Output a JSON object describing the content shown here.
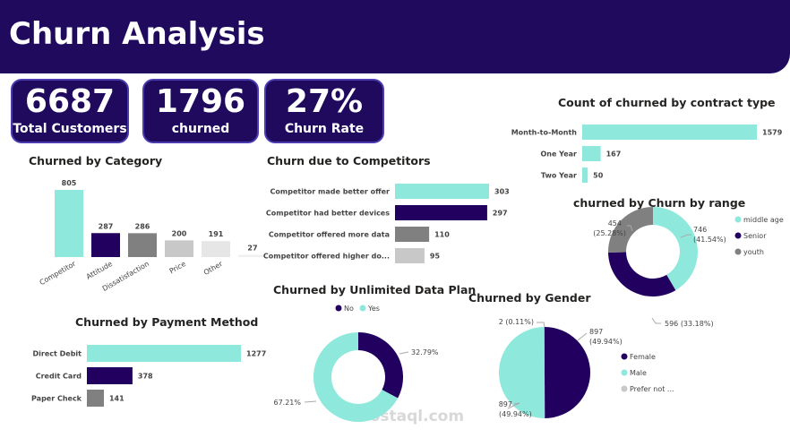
{
  "header": {
    "title": "Churn Analysis"
  },
  "kpis": [
    {
      "value": "6687",
      "label": "Total Customers"
    },
    {
      "value": "1796",
      "label": "churned"
    },
    {
      "value": "27%",
      "label": "Churn Rate"
    }
  ],
  "colors": {
    "navy": "#22005f",
    "teal": "#8ee8dc",
    "gray": "#808080",
    "light": "#c8c8c8",
    "lighter": "#e6e6e6",
    "lightest": "#f0f0f0"
  },
  "watermark": "mostaql.com",
  "chart_data": [
    {
      "id": "category",
      "type": "bar",
      "title": "Churned by Category",
      "categories": [
        "Competitor",
        "Attitude",
        "Dissatisfaction",
        "Price",
        "Other",
        ""
      ],
      "values": [
        805,
        287,
        286,
        200,
        191,
        27
      ]
    },
    {
      "id": "competitors",
      "type": "bar",
      "orientation": "horizontal",
      "title": "Churn due to Competitors",
      "categories": [
        "Competitor made better offer",
        "Competitor had better devices",
        "Competitor offered more data",
        "Competitor offered higher do..."
      ],
      "values": [
        303,
        297,
        110,
        95
      ]
    },
    {
      "id": "contract",
      "type": "bar",
      "orientation": "horizontal",
      "title": "Count of churned by contract type",
      "categories": [
        "Month-to-Month",
        "One Year",
        "Two Year"
      ],
      "values": [
        1579,
        167,
        50
      ]
    },
    {
      "id": "range",
      "type": "pie",
      "donut": true,
      "title": "churned by Churn by range",
      "legend": "right",
      "slices": [
        {
          "name": "middle age",
          "value": 746,
          "label": "746",
          "pct": "(41.54%)"
        },
        {
          "name": "Senior",
          "value": 596,
          "label": "596",
          "pct": "(33.18%)"
        },
        {
          "name": "youth",
          "value": 454,
          "label": "454",
          "pct": "(25.28%)"
        }
      ]
    },
    {
      "id": "payment",
      "type": "bar",
      "orientation": "horizontal",
      "title": "Churned by Payment Method",
      "categories": [
        "Direct Debit",
        "Credit Card",
        "Paper Check"
      ],
      "values": [
        1277,
        378,
        141
      ]
    },
    {
      "id": "unlimited",
      "type": "pie",
      "donut": true,
      "title": "Churned by Unlimited Data Plan",
      "legend": "top",
      "slices": [
        {
          "name": "No",
          "value": 32.79,
          "label": "32.79%"
        },
        {
          "name": "Yes",
          "value": 67.21,
          "label": "67.21%"
        }
      ]
    },
    {
      "id": "gender",
      "type": "pie",
      "title": "Churned by Gender",
      "legend": "right",
      "slices": [
        {
          "name": "Female",
          "value": 897,
          "label": "897",
          "pct": "(49.94%)"
        },
        {
          "name": "Male",
          "value": 897,
          "label": "897",
          "pct": "(49.94%)"
        },
        {
          "name": "Prefer not ...",
          "value": 2,
          "label": "2 (0.11%)"
        }
      ]
    }
  ]
}
